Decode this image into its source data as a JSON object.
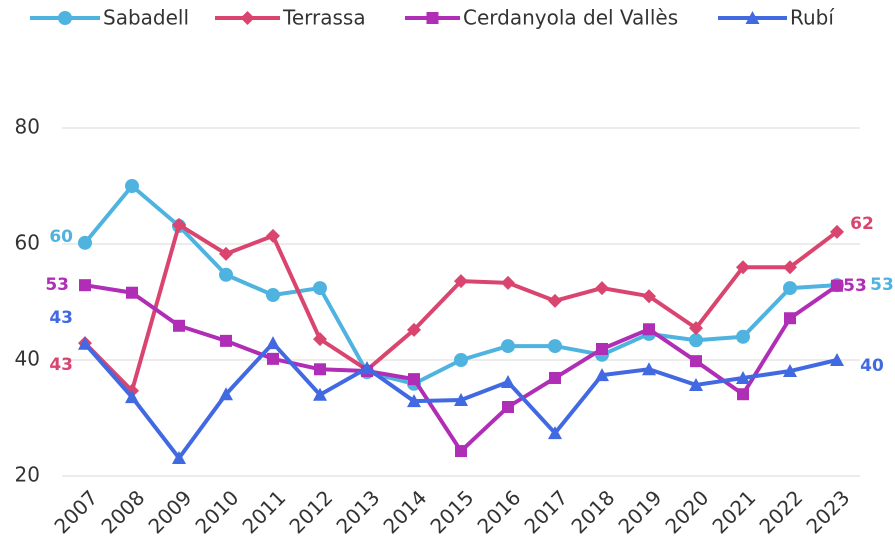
{
  "chart_data": {
    "type": "line",
    "categories": [
      "2007",
      "2008",
      "2009",
      "2010",
      "2011",
      "2012",
      "2013",
      "2014",
      "2015",
      "2016",
      "2017",
      "2018",
      "2019",
      "2020",
      "2021",
      "2022",
      "2023"
    ],
    "series": [
      {
        "name": "Sabadell",
        "color": "#4fb3e0",
        "marker": "circle",
        "values": [
          60.2,
          70,
          63.1,
          54.7,
          51.2,
          52.4,
          37.9,
          35.9,
          40,
          42.4,
          42.4,
          40.9,
          44.5,
          43.4,
          44,
          52.4,
          52.9
        ],
        "value_labels": [
          "60",
          null,
          null,
          null,
          null,
          null,
          null,
          null,
          null,
          null,
          null,
          null,
          null,
          null,
          null,
          null,
          "53"
        ]
      },
      {
        "name": "Terrassa",
        "color": "#d9456f",
        "marker": "diamond",
        "values": [
          42.9,
          34.7,
          63.3,
          58.3,
          61.4,
          43.6,
          38.3,
          45.2,
          53.6,
          53.3,
          50.2,
          52.4,
          51,
          45.5,
          56,
          56,
          62.1
        ],
        "value_labels": [
          "43",
          null,
          null,
          null,
          null,
          null,
          null,
          null,
          null,
          null,
          null,
          null,
          null,
          null,
          null,
          null,
          "62"
        ]
      },
      {
        "name": "Cerdanyola del Vallès",
        "color": "#b02db6",
        "marker": "square",
        "values": [
          52.9,
          51.6,
          45.9,
          43.3,
          40.2,
          38.4,
          38.1,
          36.7,
          24.3,
          31.9,
          36.9,
          41.9,
          45.3,
          39.8,
          34.1,
          47.2,
          52.8
        ],
        "value_labels": [
          "53",
          null,
          null,
          null,
          null,
          null,
          null,
          null,
          null,
          null,
          null,
          null,
          null,
          null,
          null,
          null,
          "53"
        ]
      },
      {
        "name": "Rubí",
        "color": "#4169e1",
        "marker": "triangle",
        "values": [
          42.8,
          33.6,
          23.1,
          34.1,
          42.9,
          34,
          38.6,
          32.9,
          33.1,
          36.2,
          27.4,
          37.4,
          38.4,
          35.7,
          36.9,
          38.1,
          40
        ],
        "value_labels": [
          "43",
          null,
          null,
          null,
          null,
          null,
          null,
          null,
          null,
          null,
          null,
          null,
          null,
          null,
          null,
          null,
          "40"
        ]
      }
    ],
    "ylim": [
      20,
      80
    ],
    "yticks": [
      20,
      40,
      60,
      80
    ],
    "grid": true,
    "legend": "top"
  }
}
